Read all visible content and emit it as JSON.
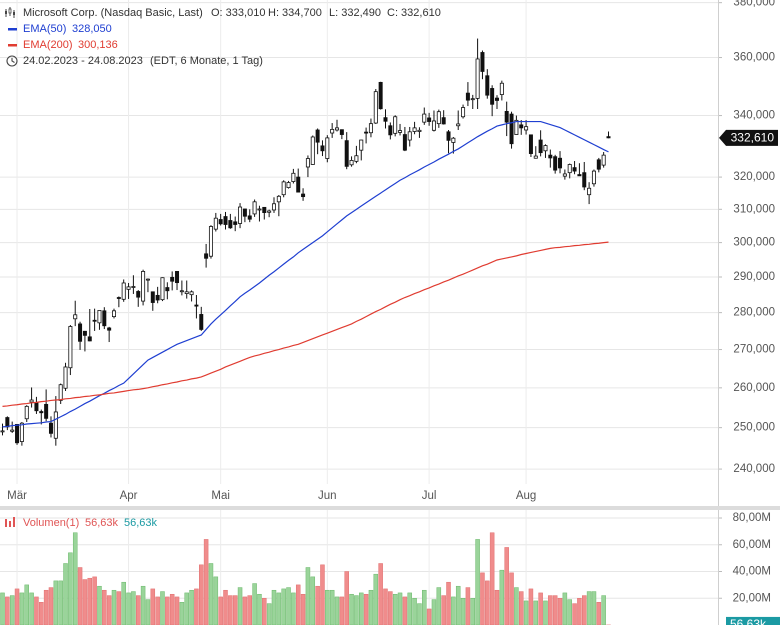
{
  "chart_data": [
    {
      "type": "candlestick",
      "title": "Microsoft Corp. (Nasdaq Basic, Last)",
      "last_labels": [
        "O: 333,010",
        "H: 334,700",
        "L: 332,490",
        "C: 332,610"
      ],
      "last_value_label": "332,610",
      "date_range": "24.02.2023 - 24.08.2023",
      "range_note": "(EDT, 6 Monate, 1 Tag)",
      "categories": [
        null,
        null,
        null,
        "Mär",
        null,
        null,
        null,
        null,
        null,
        null,
        null,
        null,
        null,
        null,
        null,
        null,
        null,
        null,
        null,
        null,
        null,
        null,
        null,
        null,
        null,
        null,
        "Apr",
        null,
        null,
        null,
        null,
        null,
        null,
        null,
        null,
        null,
        null,
        null,
        null,
        null,
        null,
        null,
        null,
        null,
        null,
        "Mai",
        null,
        null,
        null,
        null,
        null,
        null,
        null,
        null,
        null,
        null,
        null,
        null,
        null,
        null,
        null,
        null,
        null,
        null,
        null,
        null,
        null,
        "Jun",
        null,
        null,
        null,
        null,
        null,
        null,
        null,
        null,
        null,
        null,
        null,
        null,
        null,
        null,
        null,
        null,
        null,
        null,
        null,
        null,
        "Jul",
        null,
        null,
        null,
        null,
        null,
        null,
        null,
        null,
        null,
        null,
        null,
        null,
        null,
        null,
        null,
        null,
        null,
        null,
        null,
        "Aug",
        null,
        null,
        null,
        null,
        null,
        null,
        null,
        null,
        null,
        null,
        null,
        null,
        null,
        null,
        null,
        null,
        null
      ],
      "open": [
        249000,
        252500,
        249100,
        250800,
        246600,
        252200,
        256400,
        256300,
        254000,
        255800,
        251100,
        247400,
        256800,
        259900,
        265200,
        278300,
        276900,
        274900,
        273400,
        277900,
        277200,
        280500,
        275800,
        278900,
        284200,
        283700,
        286500,
        287200,
        285900,
        283200,
        289200,
        285800,
        284800,
        283600,
        287000,
        289900,
        291600,
        285900,
        285300,
        285000,
        282100,
        279500,
        296700,
        296000,
        304000,
        306900,
        307800,
        306600,
        306200,
        305700,
        310100,
        308000,
        308600,
        310100,
        310600,
        309100,
        309800,
        312300,
        314500,
        316700,
        318600,
        320000,
        314700,
        323200,
        324000,
        335200,
        330000,
        325900,
        334200,
        335200,
        335300,
        331700,
        323900,
        325000,
        328600,
        334500,
        334300,
        337500,
        351300,
        339300,
        336600,
        334100,
        334400,
        333700,
        331900,
        334700,
        334700,
        337800,
        339200,
        335100,
        337300,
        339300,
        334600,
        331100,
        336600,
        339600,
        347600,
        345700,
        345800,
        361800,
        353600,
        349200,
        345900,
        347100,
        341400,
        340500,
        333700,
        336900,
        335200,
        333600,
        326000,
        331900,
        328400,
        327000,
        326500,
        326000,
        320300,
        321400,
        323000,
        320800,
        321400,
        314500,
        317900,
        325500,
        323800,
        333010
      ],
      "high": [
        251000,
        252800,
        251500,
        250900,
        251400,
        255600,
        260100,
        257700,
        254500,
        259600,
        252800,
        257900,
        261100,
        266500,
        276600,
        283300,
        277500,
        275000,
        281000,
        281100,
        280600,
        281500,
        276100,
        281100,
        284500,
        289300,
        288300,
        290500,
        286300,
        292100,
        289600,
        285900,
        287200,
        289900,
        288500,
        291600,
        291700,
        289000,
        289000,
        286200,
        284900,
        281600,
        299600,
        305200,
        308900,
        308600,
        309200,
        308600,
        307800,
        311900,
        310200,
        310000,
        313000,
        311100,
        310700,
        309900,
        313700,
        314400,
        319000,
        318800,
        322600,
        322700,
        316500,
        326900,
        333400,
        335700,
        331800,
        333500,
        337500,
        338600,
        335400,
        334500,
        326600,
        330000,
        332000,
        336000,
        339000,
        349000,
        351500,
        342100,
        337700,
        340100,
        337200,
        336200,
        336200,
        337900,
        336100,
        342700,
        340900,
        341700,
        342000,
        341800,
        335200,
        332900,
        341700,
        343700,
        351400,
        347000,
        366800,
        362500,
        355900,
        350300,
        346900,
        351900,
        344700,
        341300,
        340000,
        338500,
        338500,
        333600,
        329900,
        335100,
        330500,
        328800,
        327100,
        328300,
        322400,
        324300,
        325100,
        324400,
        324800,
        318400,
        322400,
        326100,
        328000,
        334700
      ],
      "low": [
        248100,
        249400,
        248700,
        245800,
        245600,
        251400,
        255000,
        253400,
        250800,
        251600,
        247600,
        245600,
        255900,
        259200,
        263300,
        276300,
        269900,
        269500,
        272200,
        275000,
        275300,
        275500,
        272000,
        278400,
        281500,
        283000,
        283800,
        285200,
        281600,
        282000,
        285700,
        280500,
        282600,
        283200,
        283700,
        286200,
        286300,
        284800,
        283900,
        283100,
        278400,
        275000,
        292700,
        295300,
        303300,
        305100,
        303900,
        304100,
        303400,
        304300,
        306100,
        306100,
        307700,
        306300,
        306900,
        307600,
        308900,
        307900,
        313700,
        316400,
        318000,
        315200,
        312600,
        320000,
        323900,
        327300,
        326700,
        324700,
        332600,
        334700,
        332200,
        322500,
        323300,
        324400,
        325300,
        330800,
        332800,
        337200,
        342000,
        335700,
        332100,
        333100,
        333400,
        328300,
        329800,
        333800,
        332600,
        336900,
        336600,
        334700,
        335900,
        337000,
        327600,
        327500,
        335200,
        339000,
        343200,
        342200,
        342200,
        352400,
        345700,
        339800,
        342200,
        345100,
        333200,
        329100,
        333600,
        333600,
        333700,
        326400,
        325900,
        326600,
        326100,
        323000,
        321100,
        321200,
        319200,
        319600,
        320900,
        320400,
        315900,
        311600,
        317000,
        321500,
        323000,
        332490
      ],
      "close": [
        249200,
        250200,
        249400,
        246300,
        251100,
        255300,
        256900,
        254200,
        253700,
        252300,
        248600,
        253900,
        260800,
        265400,
        276200,
        279400,
        272200,
        273800,
        272300,
        277700,
        280600,
        276400,
        275200,
        280500,
        284100,
        288300,
        287200,
        287300,
        284300,
        291600,
        289400,
        282800,
        283500,
        289800,
        286100,
        288800,
        288400,
        286100,
        285800,
        285800,
        281800,
        275400,
        295400,
        304800,
        307300,
        305600,
        305400,
        304400,
        305400,
        310700,
        307900,
        307000,
        312300,
        310100,
        309000,
        309500,
        311700,
        314000,
        318500,
        318300,
        321200,
        315300,
        313900,
        325900,
        332900,
        331200,
        328400,
        332600,
        335400,
        335900,
        333700,
        323400,
        325300,
        326800,
        331900,
        334300,
        337300,
        348100,
        342300,
        338100,
        333600,
        339600,
        335000,
        328600,
        334600,
        335900,
        335100,
        340500,
        338000,
        338200,
        341300,
        337200,
        331800,
        332500,
        337200,
        342700,
        345200,
        345700,
        359500,
        355100,
        346900,
        343800,
        345100,
        351000,
        337800,
        330700,
        338400,
        335900,
        336300,
        327500,
        326700,
        327800,
        330100,
        326100,
        322200,
        322900,
        321000,
        324000,
        321900,
        320400,
        316900,
        316500,
        321900,
        322500,
        327000,
        332610
      ],
      "up_color": "#ffffff",
      "down_color": "#111111",
      "wick_color": "#111111",
      "log_scale": true,
      "grid": true,
      "ylim": [
        231200,
        381000
      ],
      "yticks": [
        {
          "value": 240000,
          "label": "240,000"
        },
        {
          "value": 250000,
          "label": "250,000"
        },
        {
          "value": 260000,
          "label": "260,000"
        },
        {
          "value": 270000,
          "label": "270,000"
        },
        {
          "value": 280000,
          "label": "280,000"
        },
        {
          "value": 290000,
          "label": "290,000"
        },
        {
          "value": 300000,
          "label": "300,000"
        },
        {
          "value": 310000,
          "label": "310,000"
        },
        {
          "value": 320000,
          "label": "320,000"
        },
        {
          "value": 340000,
          "label": "340,000"
        },
        {
          "value": 360000,
          "label": "360,000"
        },
        {
          "value": 380000,
          "label": "380,000"
        }
      ],
      "series": [
        {
          "name": "EMA(50)",
          "color": "#1f3fd1",
          "value_label": "328,050",
          "values": [
            250200,
            250300,
            250500,
            250600,
            250700,
            250900,
            251000,
            251100,
            251200,
            251400,
            251500,
            252100,
            252700,
            253300,
            254000,
            254600,
            255300,
            256000,
            256600,
            257300,
            258000,
            258600,
            259300,
            259900,
            260600,
            261200,
            262400,
            263600,
            264800,
            266000,
            267200,
            267900,
            268600,
            269300,
            270000,
            270700,
            271400,
            271900,
            272400,
            272900,
            273400,
            273900,
            275400,
            276900,
            278200,
            279400,
            280600,
            281900,
            283100,
            284400,
            285400,
            286300,
            287300,
            288300,
            289400,
            290500,
            291500,
            292600,
            293700,
            294800,
            295800,
            297000,
            298000,
            299000,
            300000,
            301000,
            302000,
            303200,
            304400,
            305600,
            306800,
            308000,
            309000,
            310000,
            311000,
            312000,
            313000,
            314000,
            315000,
            316000,
            317000,
            318000,
            319000,
            319800,
            320700,
            321500,
            322300,
            323200,
            324000,
            324800,
            325700,
            326500,
            327300,
            328200,
            329000,
            330000,
            331000,
            332000,
            333000,
            333900,
            334800,
            335600,
            336500,
            336900,
            337300,
            337600,
            338000,
            338000,
            338000,
            338000,
            338000,
            338000,
            337500,
            337000,
            336500,
            336000,
            335200,
            334400,
            333600,
            332800,
            332000,
            331200,
            330400,
            329600,
            328800,
            328050
          ]
        },
        {
          "name": "EMA(200)",
          "color": "#e03c31",
          "value_label": "300,136",
          "values": [
            255300,
            255400,
            255600,
            255700,
            255900,
            256000,
            256200,
            256300,
            256500,
            256600,
            256800,
            256900,
            257000,
            257200,
            257300,
            257500,
            257600,
            257800,
            257900,
            258100,
            258200,
            258400,
            258600,
            258700,
            258900,
            259100,
            259300,
            259500,
            259600,
            259800,
            260000,
            260300,
            260500,
            260800,
            261000,
            261300,
            261500,
            261800,
            262000,
            262300,
            262500,
            262800,
            263300,
            263800,
            264300,
            264800,
            265400,
            265900,
            266400,
            266900,
            267400,
            267900,
            268300,
            268600,
            269000,
            269300,
            269700,
            270000,
            270400,
            270700,
            271100,
            271400,
            271900,
            272400,
            272900,
            273400,
            273900,
            274400,
            274900,
            275400,
            275900,
            276400,
            276900,
            277600,
            278200,
            278900,
            279600,
            280300,
            280900,
            281600,
            282300,
            282900,
            283600,
            284200,
            284700,
            285300,
            285800,
            286400,
            286900,
            287500,
            288000,
            288600,
            289100,
            289700,
            290300,
            290800,
            291400,
            292000,
            292600,
            293200,
            293700,
            294300,
            294900,
            295200,
            295500,
            295800,
            296100,
            296500,
            296800,
            297100,
            297400,
            297700,
            298000,
            298300,
            298500,
            298600,
            298800,
            298900,
            299100,
            299200,
            299400,
            299500,
            299700,
            299800,
            300000,
            300136
          ]
        }
      ]
    },
    {
      "type": "bar",
      "title": "Volumen(1)",
      "last_value_label": "56,63k",
      "up_color": "#9ad49a",
      "down_color": "#f08c8c",
      "label_color": "#e05555",
      "marker_color": "#1b9aa3",
      "grid": true,
      "ylim": [
        0,
        86
      ],
      "yticks": [
        {
          "value": 20,
          "label": "20,00M"
        },
        {
          "value": 40,
          "label": "40,00M"
        },
        {
          "value": 60,
          "label": "60,00M"
        },
        {
          "value": 80,
          "label": "80,00M"
        }
      ],
      "values": [
        24,
        21,
        22,
        27,
        24,
        30,
        24,
        21,
        17,
        26,
        28,
        33,
        33,
        46,
        54,
        69,
        43,
        34,
        35,
        36,
        29,
        26,
        22,
        26,
        25,
        32,
        24,
        25,
        22,
        29,
        19,
        27,
        21,
        25,
        21,
        23,
        21,
        17,
        24,
        26,
        27,
        45,
        64,
        46,
        36,
        21,
        26,
        22,
        22,
        28,
        21,
        22,
        31,
        23,
        20,
        16,
        26,
        24,
        27,
        28,
        24,
        30,
        23,
        43,
        36,
        29,
        45,
        26,
        26,
        21,
        21,
        40,
        23,
        22,
        24,
        23,
        26,
        38,
        46,
        27,
        25,
        23,
        24,
        21,
        24,
        20,
        16,
        26,
        12,
        19,
        28,
        22,
        32,
        21,
        29,
        20,
        28,
        20,
        64,
        39,
        33,
        69,
        26,
        41,
        58,
        39,
        28,
        25,
        18,
        27,
        18,
        24,
        18,
        22,
        22,
        20,
        24,
        19,
        16,
        20,
        22,
        25,
        25,
        17,
        22,
        0.05663
      ]
    }
  ]
}
